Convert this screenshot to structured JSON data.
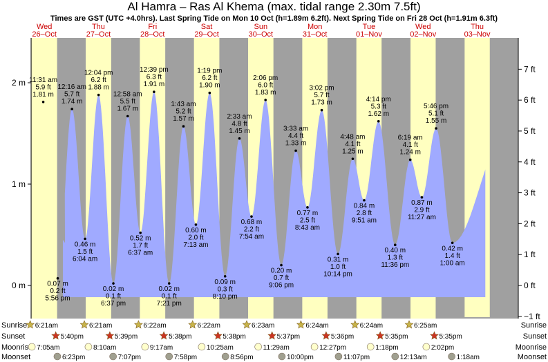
{
  "title": "Al Hamra – Ras Al Khema (max. tidal range 2.30m 7.5ft)",
  "subtitle": "Times are GST (UTC +4.0hrs). Last Spring Tide on Mon 10 Oct (h=1.89m 6.2ft). Next Spring Tide on Fri 28 Oct (h=1.91m 6.3ft)",
  "colors": {
    "night": "#a0a0a0",
    "day": "#ffffc0",
    "tide_fill": "#a0aaff",
    "day_label": "#cc0000",
    "sun_rise": "#c8b44a",
    "sun_set": "#cc3322",
    "moon_rise": "#ffffcc",
    "moon_set": "#a0a090"
  },
  "days": [
    {
      "dow": "Wed",
      "date": "26–Oct"
    },
    {
      "dow": "Thu",
      "date": "27–Oct"
    },
    {
      "dow": "Fri",
      "date": "28–Oct"
    },
    {
      "dow": "Sat",
      "date": "29–Oct"
    },
    {
      "dow": "Sun",
      "date": "30–Oct"
    },
    {
      "dow": "Mon",
      "date": "31–Oct"
    },
    {
      "dow": "Tue",
      "date": "01–Nov"
    },
    {
      "dow": "Wed",
      "date": "02–Nov"
    },
    {
      "dow": "Thu",
      "date": "03–Nov"
    }
  ],
  "astro_labels": [
    "Sunrise",
    "Sunset",
    "Moonrise",
    "Moonset"
  ],
  "sunrise": [
    "6:21am",
    "6:21am",
    "6:22am",
    "6:22am",
    "6:23am",
    "6:24am",
    "6:24am",
    "6:25am"
  ],
  "sunset": [
    "5:40pm",
    "5:39pm",
    "5:38pm",
    "5:38pm",
    "5:37pm",
    "5:36pm",
    "5:35pm",
    "5:35pm"
  ],
  "moonrise": [
    "7:05am",
    "8:10am",
    "9:17am",
    "10:25am",
    "11:29am",
    "12:27pm",
    "1:18pm",
    "2:02pm"
  ],
  "moonset": [
    "6:23pm",
    "7:07pm",
    "7:58pm",
    "8:56pm",
    "10:00pm",
    "11:07pm",
    "12:13am",
    "1:18am"
  ],
  "chart_data": {
    "type": "area",
    "title": "Al Hamra – Ras Al Khema (max. tidal range 2.30m 7.5ft)",
    "y_left_ticks": [
      "0 m",
      "1 m",
      "2 m"
    ],
    "y_left_values": [
      0,
      1,
      2
    ],
    "y_right_ticks": [
      "−1 ft",
      "0 ft",
      "1 ft",
      "2 ft",
      "3 ft",
      "4 ft",
      "5 ft",
      "6 ft",
      "7 ft"
    ],
    "y_right_values": [
      -1,
      0,
      1,
      2,
      3,
      4,
      5,
      6,
      7
    ],
    "ylim_m": [
      -0.3,
      2.45
    ],
    "tides": [
      {
        "day": 0,
        "hours": 11.517,
        "time": "11:31 am",
        "ft": "5.9 ft",
        "m": "1.81 m",
        "value": 1.81,
        "type": "high"
      },
      {
        "day": 0,
        "hours": 17.933,
        "time": "5:56 pm",
        "ft": "0.2 ft",
        "m": "0.07 m",
        "value": 0.07,
        "type": "low"
      },
      {
        "day": 1,
        "hours": 0.267,
        "time": "12:16 am",
        "ft": "5.7 ft",
        "m": "1.74 m",
        "value": 1.74,
        "type": "high"
      },
      {
        "day": 1,
        "hours": 6.067,
        "time": "6:04 am",
        "ft": "1.5 ft",
        "m": "0.46 m",
        "value": 0.46,
        "type": "low"
      },
      {
        "day": 1,
        "hours": 12.067,
        "time": "12:04 pm",
        "ft": "6.2 ft",
        "m": "1.88 m",
        "value": 1.88,
        "type": "high"
      },
      {
        "day": 1,
        "hours": 18.617,
        "time": "6:37 pm",
        "ft": "0.1 ft",
        "m": "0.02 m",
        "value": 0.02,
        "type": "low"
      },
      {
        "day": 2,
        "hours": 0.967,
        "time": "12:58 am",
        "ft": "5.5 ft",
        "m": "1.67 m",
        "value": 1.67,
        "type": "high"
      },
      {
        "day": 2,
        "hours": 6.617,
        "time": "6:37 am",
        "ft": "1.7 ft",
        "m": "0.52 m",
        "value": 0.52,
        "type": "low"
      },
      {
        "day": 2,
        "hours": 12.65,
        "time": "12:39 pm",
        "ft": "6.3 ft",
        "m": "1.91 m",
        "value": 1.91,
        "type": "high"
      },
      {
        "day": 2,
        "hours": 19.35,
        "time": "7:21 pm",
        "ft": "0.1 ft",
        "m": "0.02 m",
        "value": 0.02,
        "type": "low"
      },
      {
        "day": 3,
        "hours": 1.717,
        "time": "1:43 am",
        "ft": "5.2 ft",
        "m": "1.57 m",
        "value": 1.57,
        "type": "high"
      },
      {
        "day": 3,
        "hours": 7.217,
        "time": "7:13 am",
        "ft": "2.0 ft",
        "m": "0.60 m",
        "value": 0.6,
        "type": "low"
      },
      {
        "day": 3,
        "hours": 13.317,
        "time": "1:19 pm",
        "ft": "6.2 ft",
        "m": "1.90 m",
        "value": 1.9,
        "type": "high"
      },
      {
        "day": 3,
        "hours": 20.167,
        "time": "8:10 pm",
        "ft": "0.3 ft",
        "m": "0.09 m",
        "value": 0.09,
        "type": "low"
      },
      {
        "day": 4,
        "hours": 2.55,
        "time": "2:33 am",
        "ft": "4.8 ft",
        "m": "1.45 m",
        "value": 1.45,
        "type": "high"
      },
      {
        "day": 4,
        "hours": 7.9,
        "time": "7:54 am",
        "ft": "2.2 ft",
        "m": "0.68 m",
        "value": 0.68,
        "type": "low"
      },
      {
        "day": 4,
        "hours": 14.1,
        "time": "2:06 pm",
        "ft": "6.0 ft",
        "m": "1.83 m",
        "value": 1.83,
        "type": "high"
      },
      {
        "day": 4,
        "hours": 21.1,
        "time": "9:06 pm",
        "ft": "0.7 ft",
        "m": "0.20 m",
        "value": 0.2,
        "type": "low"
      },
      {
        "day": 5,
        "hours": 3.55,
        "time": "3:33 am",
        "ft": "4.4 ft",
        "m": "1.33 m",
        "value": 1.33,
        "type": "high"
      },
      {
        "day": 5,
        "hours": 8.717,
        "time": "8:43 am",
        "ft": "2.5 ft",
        "m": "0.77 m",
        "value": 0.77,
        "type": "low"
      },
      {
        "day": 5,
        "hours": 15.033,
        "time": "3:02 pm",
        "ft": "5.7 ft",
        "m": "1.73 m",
        "value": 1.73,
        "type": "high"
      },
      {
        "day": 5,
        "hours": 22.233,
        "time": "10:14 pm",
        "ft": "1.0 ft",
        "m": "0.31 m",
        "value": 0.31,
        "type": "low"
      },
      {
        "day": 6,
        "hours": 4.8,
        "time": "4:48 am",
        "ft": "4.1 ft",
        "m": "1.25 m",
        "value": 1.25,
        "type": "high"
      },
      {
        "day": 6,
        "hours": 9.85,
        "time": "9:51 am",
        "ft": "2.8 ft",
        "m": "0.84 m",
        "value": 0.84,
        "type": "low"
      },
      {
        "day": 6,
        "hours": 16.233,
        "time": "4:14 pm",
        "ft": "5.3 ft",
        "m": "1.62 m",
        "value": 1.62,
        "type": "high"
      },
      {
        "day": 6,
        "hours": 23.6,
        "time": "11:36 pm",
        "ft": "1.3 ft",
        "m": "0.40 m",
        "value": 0.4,
        "type": "low"
      },
      {
        "day": 7,
        "hours": 6.317,
        "time": "6:19 am",
        "ft": "4.1 ft",
        "m": "1.24 m",
        "value": 1.24,
        "type": "high"
      },
      {
        "day": 7,
        "hours": 11.45,
        "time": "11:27 am",
        "ft": "2.9 ft",
        "m": "0.87 m",
        "value": 0.87,
        "type": "low"
      },
      {
        "day": 7,
        "hours": 17.767,
        "time": "5:46 pm",
        "ft": "5.1 ft",
        "m": "1.55 m",
        "value": 1.55,
        "type": "high"
      },
      {
        "day": 8,
        "hours": 1.0,
        "time": "1:00 am",
        "ft": "1.4 ft",
        "m": "0.42 m",
        "value": 0.42,
        "type": "low"
      }
    ]
  }
}
